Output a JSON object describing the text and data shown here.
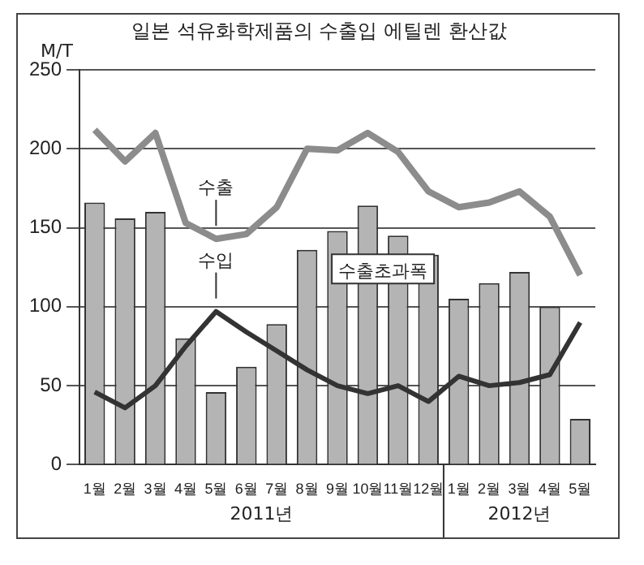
{
  "chart_data": {
    "type": "bar",
    "title": "일본 석유화학제품의 수출입 에틸렌 환산값",
    "ylabel": "M/T",
    "categories": [
      "1월",
      "2월",
      "3월",
      "4월",
      "5월",
      "6월",
      "7월",
      "8월",
      "9월",
      "10월",
      "11월",
      "12월",
      "1월",
      "2월",
      "3월",
      "4월",
      "5월"
    ],
    "series": [
      {
        "name": "수출초과폭",
        "color": "#b4b4b4",
        "values": [
          166,
          156,
          160,
          80,
          46,
          62,
          89,
          136,
          148,
          164,
          145,
          133,
          105,
          115,
          122,
          100,
          29
        ]
      },
      {
        "name": "수출",
        "type": "line",
        "color": "#8c8c8c",
        "values": [
          212,
          192,
          210,
          153,
          143,
          146,
          163,
          200,
          199,
          210,
          198,
          173,
          163,
          166,
          173,
          157,
          120
        ]
      },
      {
        "name": "수입",
        "type": "line",
        "color": "#333333",
        "values": [
          46,
          36,
          50,
          75,
          97,
          84,
          72,
          60,
          50,
          45,
          50,
          40,
          56,
          50,
          52,
          57,
          90
        ]
      }
    ],
    "ylim": [
      0,
      250
    ],
    "yticks": [
      0,
      50,
      100,
      150,
      200,
      250
    ],
    "grid": "y",
    "legend": false,
    "marker": "none",
    "line_style": "solid",
    "annotations": [
      "2011년",
      "2012년"
    ]
  }
}
